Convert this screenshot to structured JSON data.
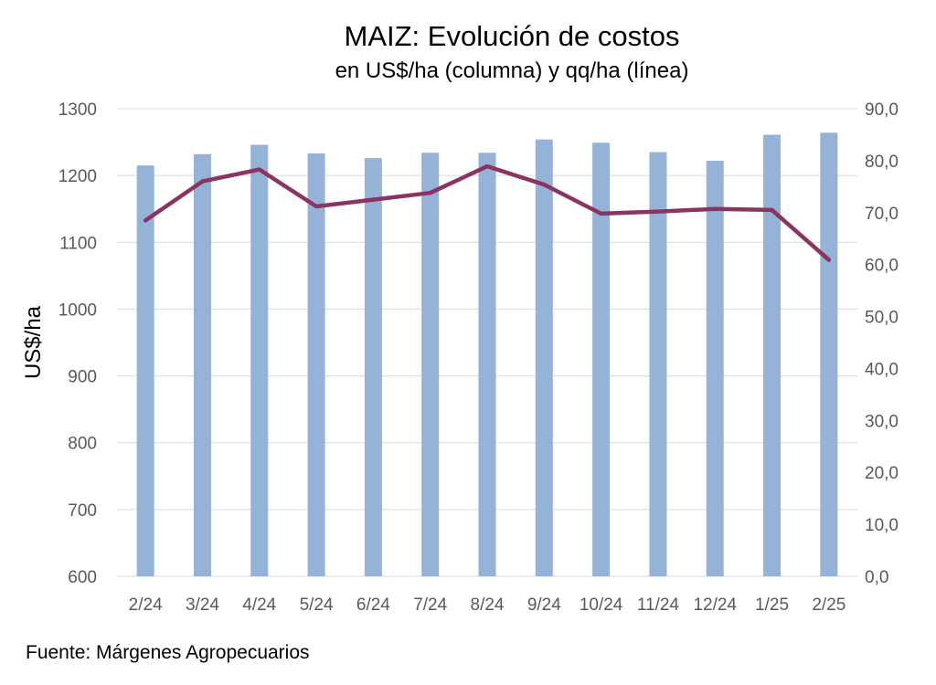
{
  "chart_data": {
    "type": "bar",
    "title": "MAIZ: Evolución de costos",
    "subtitle": "en US$/ha (columna) y qq/ha (línea)",
    "ylabel": "US$/ha",
    "y2label": "",
    "categories": [
      "2/24",
      "3/24",
      "4/24",
      "5/24",
      "6/24",
      "7/24",
      "8/24",
      "9/24",
      "10/24",
      "11/24",
      "12/24",
      "1/25",
      "2/25"
    ],
    "series": [
      {
        "type": "bar",
        "axis": "left",
        "values": [
          1215,
          1232,
          1246,
          1233,
          1226,
          1234,
          1234,
          1254,
          1249,
          1235,
          1222,
          1261,
          1264
        ],
        "color": "#95b3d7"
      },
      {
        "type": "line",
        "axis": "right",
        "values": [
          68.5,
          76.0,
          78.3,
          71.2,
          72.5,
          73.8,
          78.9,
          75.4,
          69.8,
          70.2,
          70.7,
          70.5,
          60.9
        ],
        "color": "#8b3461"
      }
    ],
    "ylim": [
      600,
      1300
    ],
    "y_ticks": [
      "600",
      "700",
      "800",
      "900",
      "1000",
      "1100",
      "1200",
      "1300"
    ],
    "y_tick_values": [
      600,
      700,
      800,
      900,
      1000,
      1100,
      1200,
      1300
    ],
    "y2lim": [
      0,
      90
    ],
    "y2_ticks": [
      "0,0",
      "10,0",
      "20,0",
      "30,0",
      "40,0",
      "50,0",
      "60,0",
      "70,0",
      "80,0",
      "90,0"
    ],
    "y2_tick_values": [
      0,
      10,
      20,
      30,
      40,
      50,
      60,
      70,
      80,
      90
    ],
    "grid": true,
    "legend": "none"
  },
  "source": "Fuente: Márgenes Agropecuarios",
  "colors": {
    "grid": "#d9d9d9",
    "axis_text": "#595959"
  }
}
